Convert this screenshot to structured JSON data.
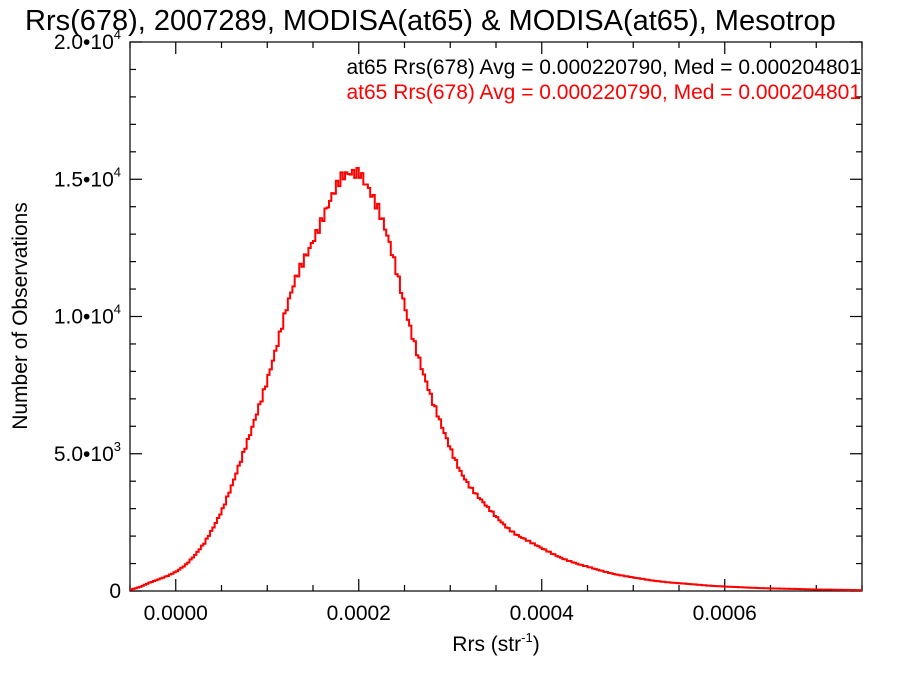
{
  "chart_data": {
    "type": "histogram-step",
    "title": "Rrs(678), 2007289, MODISA(at65) & MODISA(at65), Mesotrop",
    "xlabel": "Rrs (str",
    "xlabel_exponent": "-1",
    "xlabel_suffix": ")",
    "ylabel": "Number of Observations",
    "xlim": [
      -5e-05,
      0.00075
    ],
    "ylim": [
      0,
      20000
    ],
    "x_ticks": [
      {
        "value": 0.0,
        "label": "0.0000"
      },
      {
        "value": 0.0002,
        "label": "0.0002"
      },
      {
        "value": 0.0004,
        "label": "0.0004"
      },
      {
        "value": 0.0006,
        "label": "0.0006"
      }
    ],
    "y_ticks": [
      {
        "value": 0,
        "mantissa": "0",
        "exponent": ""
      },
      {
        "value": 5000,
        "mantissa": "5.0•10",
        "exponent": "3"
      },
      {
        "value": 10000,
        "mantissa": "1.0•10",
        "exponent": "4"
      },
      {
        "value": 15000,
        "mantissa": "1.5•10",
        "exponent": "4"
      },
      {
        "value": 20000,
        "mantissa": "2.0•10",
        "exponent": "4"
      }
    ],
    "legend": [
      {
        "text": "at65 Rrs(678) Avg = 0.000220790, Med = 0.000204801",
        "color": "#000000"
      },
      {
        "text": "at65 Rrs(678) Avg = 0.000220790, Med = 0.000204801",
        "color": "#ff0000"
      }
    ],
    "legend_position": "top-right",
    "series": [
      {
        "color": "#ff0000",
        "points": [
          [
            -5e-05,
            50
          ],
          [
            -4e-05,
            150
          ],
          [
            -3e-05,
            300
          ],
          [
            -2e-05,
            430
          ],
          [
            -1e-05,
            560
          ],
          [
            0.0,
            720
          ],
          [
            1e-05,
            950
          ],
          [
            2e-05,
            1300
          ],
          [
            3e-05,
            1750
          ],
          [
            4e-05,
            2350
          ],
          [
            5e-05,
            3000
          ],
          [
            6e-05,
            3800
          ],
          [
            7e-05,
            4700
          ],
          [
            8e-05,
            5700
          ],
          [
            9e-05,
            6800
          ],
          [
            0.0001,
            7900
          ],
          [
            0.00011,
            9000
          ],
          [
            0.00012,
            10200
          ],
          [
            0.00013,
            11300
          ],
          [
            0.00014,
            12200
          ],
          [
            0.00015,
            13000
          ],
          [
            0.00016,
            13700
          ],
          [
            0.00017,
            14300
          ],
          [
            0.00018,
            14900
          ],
          [
            0.00019,
            15200
          ],
          [
            0.0002,
            15400
          ],
          [
            0.00021,
            14800
          ],
          [
            0.00022,
            13900
          ],
          [
            0.00023,
            12800
          ],
          [
            0.00024,
            11600
          ],
          [
            0.00025,
            10300
          ],
          [
            0.00026,
            9100
          ],
          [
            0.00027,
            7900
          ],
          [
            0.00028,
            6800
          ],
          [
            0.00029,
            5900
          ],
          [
            0.0003,
            5100
          ],
          [
            0.00031,
            4400
          ],
          [
            0.00032,
            3850
          ],
          [
            0.00033,
            3400
          ],
          [
            0.00034,
            3000
          ],
          [
            0.00035,
            2650
          ],
          [
            0.00036,
            2350
          ],
          [
            0.00037,
            2100
          ],
          [
            0.00038,
            1900
          ],
          [
            0.00039,
            1700
          ],
          [
            0.0004,
            1520
          ],
          [
            0.00042,
            1220
          ],
          [
            0.00044,
            960
          ],
          [
            0.00046,
            770
          ],
          [
            0.00048,
            610
          ],
          [
            0.0005,
            480
          ],
          [
            0.00052,
            380
          ],
          [
            0.00054,
            310
          ],
          [
            0.00056,
            250
          ],
          [
            0.00058,
            200
          ],
          [
            0.0006,
            160
          ],
          [
            0.00062,
            130
          ],
          [
            0.00064,
            105
          ],
          [
            0.00066,
            85
          ],
          [
            0.00068,
            70
          ],
          [
            0.0007,
            55
          ],
          [
            0.00072,
            45
          ],
          [
            0.00074,
            35
          ],
          [
            0.00075,
            30
          ]
        ]
      }
    ]
  }
}
